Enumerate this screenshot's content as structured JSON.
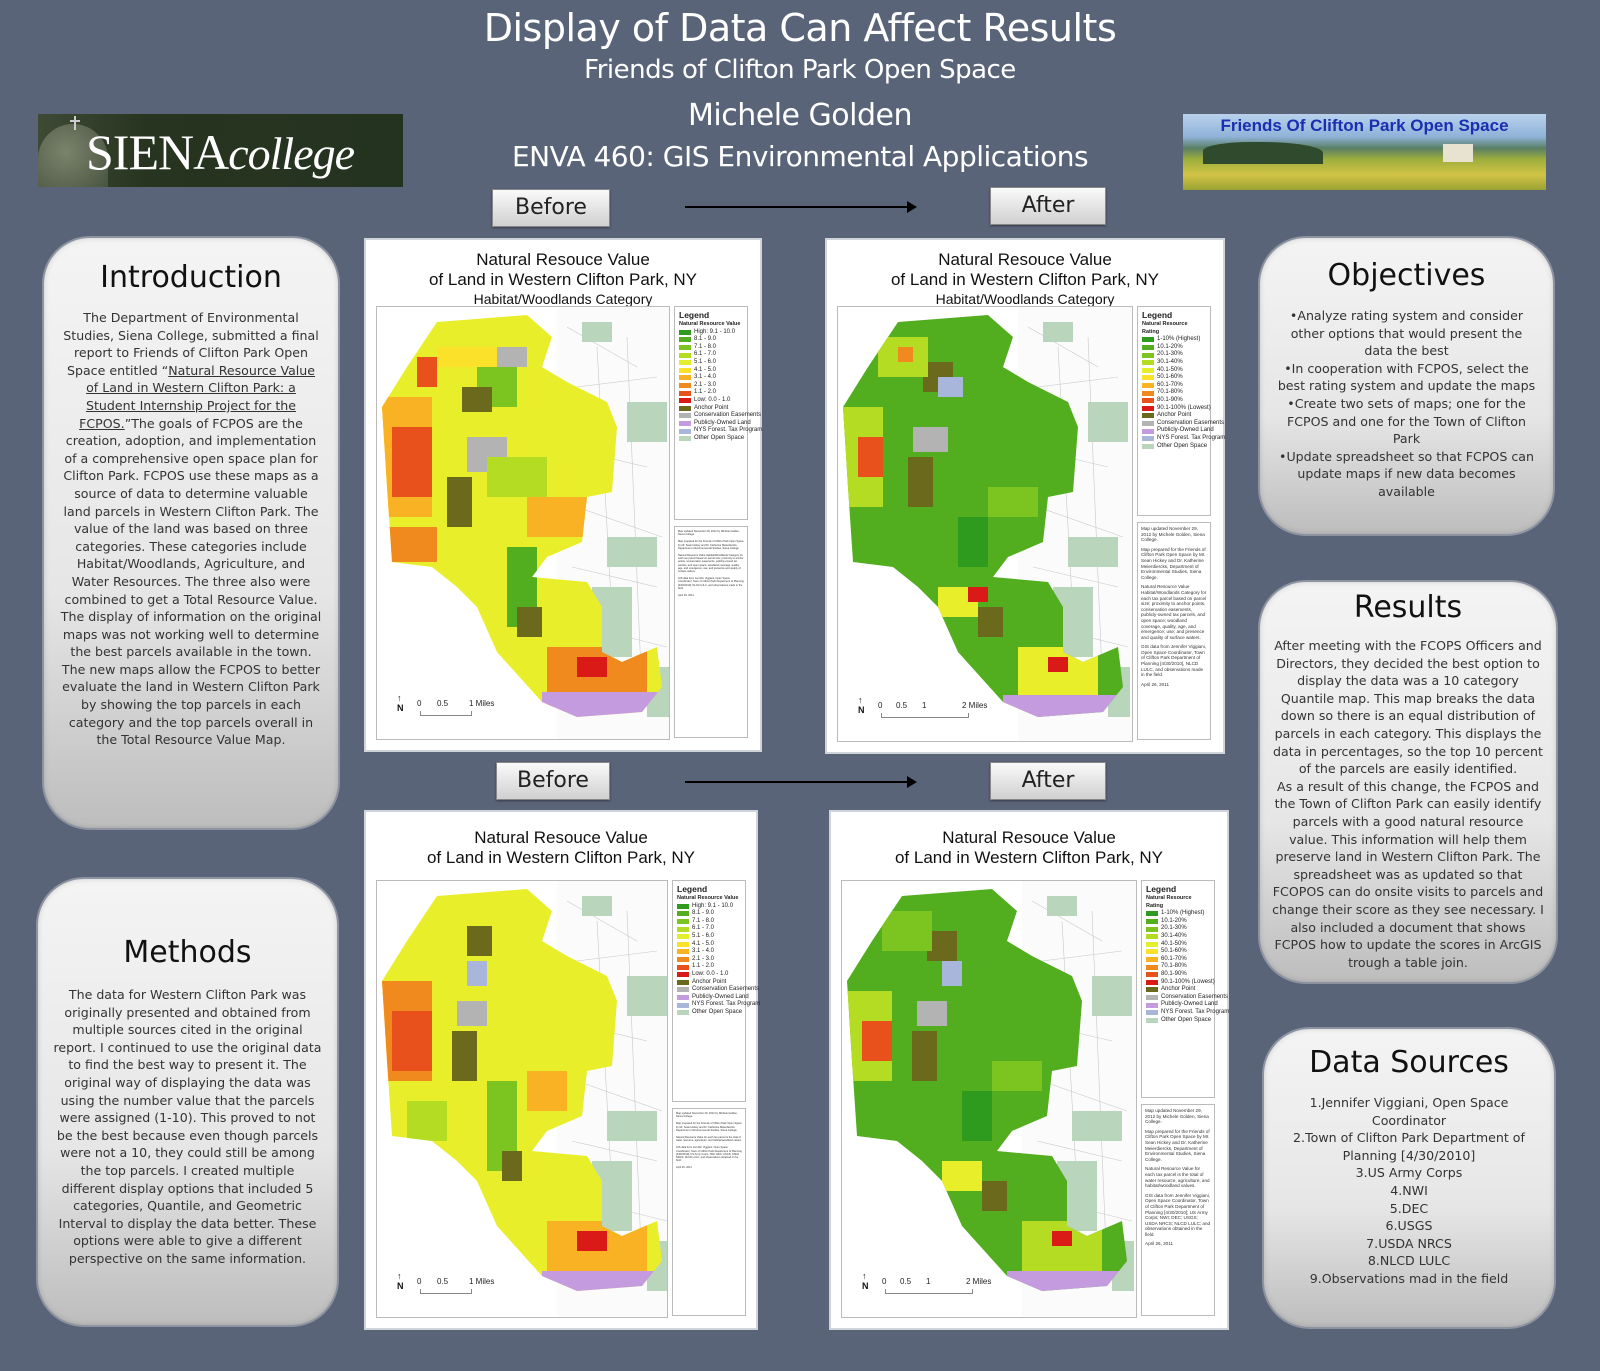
{
  "header": {
    "title": "Display of Data Can Affect Results",
    "organization": "Friends of Clifton Park Open Space",
    "author": "Michele Golden",
    "course": "ENVA 460: GIS Environmental Applications"
  },
  "logos": {
    "siena_main": "SIENA",
    "siena_sub": "college",
    "fcpos": "Friends Of Clifton Park Open Space"
  },
  "labels": {
    "before": "Before",
    "after": "After"
  },
  "introduction": {
    "title": "Introduction",
    "text_pre": "The Department of Environmental Studies, Siena College, submitted a final report to Friends of Clifton Park Open Space entitled “",
    "text_link": "Natural Resource Value of Land in Western Clifton Park: a Student Internship Project for the FCPOS.",
    "text_post": "”The goals of FCPOS are the creation, adoption, and implementation of a comprehensive open space plan for Clifton Park.  FCPOS use these maps as a source of data to determine valuable land parcels in Western Clifton Park. The value of the land was based on three categories. These categories include Habitat/Woodlands, Agriculture, and Water Resources. The three also were combined to get a Total Resource Value.",
    "text2": "The display of information on the original maps was not working well to determine the best parcels available in the town.",
    "text3": "The new maps allow the FCPOS to better evaluate the land in Western Clifton Park by showing the top parcels in each category and the top parcels overall in the Total Resource Value Map."
  },
  "methods": {
    "title": "Methods",
    "text": "The data for Western Clifton Park was originally presented and obtained from multiple sources cited in the original report. I continued to use the original data to find the best way to present it. The original way of displaying the data was using the number value that the parcels were assigned (1-10). This proved to not be the best because even though parcels were not a 10, they could still be among the top parcels. I created multiple different display options that included 5 categories, Quantile, and Geometric Interval to display the data better. These options were able to give a different perspective on the same information."
  },
  "objectives": {
    "title": "Objectives",
    "items": [
      "•Analyze rating system and consider other options that would present the data the best",
      "•In cooperation with FCPOS, select the best rating system and update the maps",
      "•Create two sets of maps; one for the FCPOS and one for the Town of Clifton Park",
      "•Update spreadsheet so that FCPOS can update maps if new data becomes available"
    ]
  },
  "results": {
    "title": "Results",
    "text1": "After meeting with the FCOPS Officers and Directors, they decided the best option to display the data was a 10 category Quantile map. This map breaks the data  down so there is an equal distribution of parcels in each category. This displays the data in percentages, so the top 10 percent of the parcels are easily identified.",
    "text2": "As a result of this change, the FCPOS and the Town of Clifton Park can easily identify parcels with a good natural resource value. This information will help them preserve land in Western Clifton Park. The spreadsheet was as updated so that FCOPOS can do onsite visits to parcels and change their score as they see necessary. I also included a document that shows FCPOS how to update the scores in ArcGIS trough a table join."
  },
  "data_sources": {
    "title": "Data Sources",
    "items": [
      "1.Jennifer Viggiani, Open Space Coordinator",
      "2.Town of Clifton Park Department of Planning [4/30/2010]",
      "3.US Army Corps",
      "4.NWI",
      "5.DEC",
      "6.USGS",
      "7.USDA NRCS",
      "8.NLCD LULC",
      "9.Observations mad in the field"
    ]
  },
  "maps": {
    "title_line1": "Natural Resouce Value",
    "title_line2": "of Land in Western Clifton Park, NY",
    "subtitle_habitat": "Habitat/Woodlands Category",
    "legend_title": "Legend",
    "before_legend": {
      "heading": "Natural Resource Value",
      "items": [
        {
          "label": "High: 9.1 - 10.0",
          "color": "#2e9a1e"
        },
        {
          "label": "8.1 - 9.0",
          "color": "#52ae1f"
        },
        {
          "label": "7.1 - 8.0",
          "color": "#7cc41f"
        },
        {
          "label": "6.1 - 7.0",
          "color": "#b3dc22"
        },
        {
          "label": "5.1 - 6.0",
          "color": "#e2ef2a"
        },
        {
          "label": "4.1 - 5.0",
          "color": "#fbe12a"
        },
        {
          "label": "3.1 - 4.0",
          "color": "#f8b224"
        },
        {
          "label": "2.1 - 3.0",
          "color": "#f08a1f"
        },
        {
          "label": "1.1 - 2.0",
          "color": "#e8501c"
        },
        {
          "label": "Low: 0.0 - 1.0",
          "color": "#d91a17"
        },
        {
          "label": "Anchor Point",
          "color": "#6b6a1c"
        },
        {
          "label": "Conservation Easements",
          "color": "#b3b3b3"
        },
        {
          "label": "Publicly-Owned Land",
          "color": "#c59be0"
        },
        {
          "label": "NYS Forest. Tax Program",
          "color": "#a9b6dc"
        },
        {
          "label": "Other Open Space",
          "color": "#b9d6bd"
        }
      ]
    },
    "after_legend": {
      "heading": "Natural Resource Rating",
      "items": [
        {
          "label": "1-10% (Highest)",
          "color": "#2e9a1e"
        },
        {
          "label": "10.1-20%",
          "color": "#52ae1f"
        },
        {
          "label": "20.1-30%",
          "color": "#7cc41f"
        },
        {
          "label": "30.1-40%",
          "color": "#b3dc22"
        },
        {
          "label": "40.1-50%",
          "color": "#e2ef2a"
        },
        {
          "label": "50.1-60%",
          "color": "#fbe12a"
        },
        {
          "label": "60.1-70%",
          "color": "#f8b224"
        },
        {
          "label": "70.1-80%",
          "color": "#f08a1f"
        },
        {
          "label": "80.1-90%",
          "color": "#e8501c"
        },
        {
          "label": "90.1-100% (Lowest)",
          "color": "#d91a17"
        },
        {
          "label": "Anchor Point",
          "color": "#6b6a1c"
        },
        {
          "label": "Conservation Easements",
          "color": "#b3b3b3"
        },
        {
          "label": "Publicly-Owned Land",
          "color": "#c59be0"
        },
        {
          "label": "NYS Forest. Tax Program",
          "color": "#a9b6dc"
        },
        {
          "label": "Other Open Space",
          "color": "#b9d6bd"
        }
      ]
    },
    "scale_before": {
      "ticks": [
        "0",
        "0.5",
        "1 Miles"
      ]
    },
    "scale_after": {
      "ticks": [
        "0",
        "0.5",
        "1",
        "2 Miles"
      ]
    },
    "north": "N",
    "notes_habitat": [
      "Map updated November 29, 2012 by Michele Golden, Siena College.",
      "Map prepared for the Friends of Clifton Park Open Space by Mr. Sean Hickey and Dr. Katherine Meierdiercks, Department of Environmental Studies, Siena College.",
      "Natural Resource Value Habitat/Woodlands Category for each tax parcel based on parcel size; proximity to anchor points, conservation easements, publicly-owned tax parcels, and open space; woodland coverage, quality, age, and emergence; use; and presence and quality of surface waters.",
      "GIS data from Jennifer Viggiani, Open Space Coordinator, Town of Clifton Park Department of Planning [4/30/2010], NLCD LULC, and observations made in the field.",
      "April 26, 2011"
    ],
    "notes_total": [
      "Map updated November 29, 2012 by Michele Golden, Siena College.",
      "Map prepared for the Friends of Clifton Park Open Space by Mr. Sean Hickey and Dr. Katherine Meierdiercks, Department of Environmental Studies, Siena College.",
      "Natural Resource Value for each tax parcel is the total of water resource, agriculture, and habitat/woodland values.",
      "GIS data from Jennifer Viggiani, Open Space Coordinator, Town of Clifton Park Department of Planning [4/30/2010]; US Army Corps; NWI; DEC; USGS; USDA NRCS; NLCD LULC; and observations obtained in the field.",
      "April 26, 2011"
    ]
  }
}
